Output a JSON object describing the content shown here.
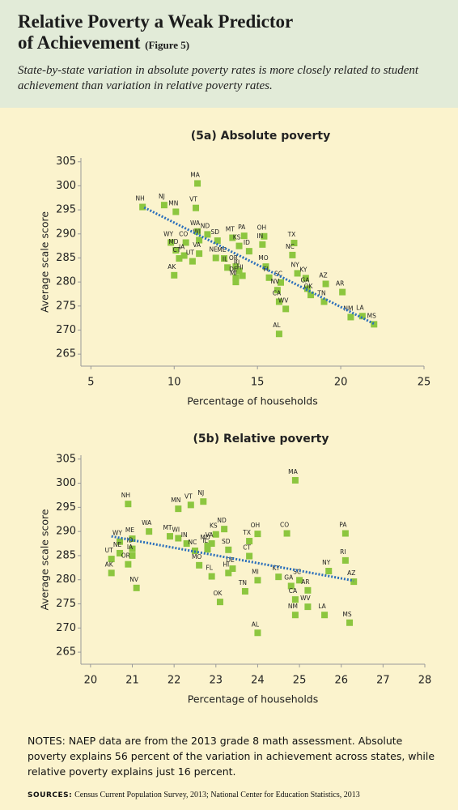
{
  "header": {
    "title": "Relative Poverty a Weak Predictor of Achievement",
    "figure": "(Figure 5)",
    "subtitle": "State-by-state variation in absolute poverty rates is more closely related to student achievement than variation in relative poverty rates."
  },
  "chart_data": [
    {
      "type": "scatter",
      "title": "(5a) Absolute poverty",
      "x_label": "Percentage of households",
      "y_label": "Average scale score",
      "xlim": [
        4.4,
        25
      ],
      "xticks": [
        5,
        10,
        15,
        20,
        25
      ],
      "ylim": [
        262.5,
        305.8
      ],
      "yticks": [
        265,
        270,
        275,
        280,
        285,
        290,
        295,
        300,
        305
      ],
      "color": "#8cc63f",
      "point_labels": [
        "MA",
        "NH",
        "NJ",
        "MN",
        "VT",
        "WA",
        "ND",
        "SD",
        "MT",
        "PA",
        "OH",
        "TX",
        "WY",
        "CO",
        "WI",
        "KS",
        "IN",
        "ID",
        "MD",
        "IA",
        "VA",
        "NE",
        "UT",
        "CT",
        "ME",
        "IL",
        "OR",
        "NC",
        "MO",
        "RI",
        "DE",
        "NY",
        "HI",
        "KY",
        "SC",
        "FL",
        "AZ",
        "MI",
        "NV",
        "GA",
        "AR",
        "OK",
        "TN",
        "CA",
        "WV",
        "NM",
        "LA",
        "MS",
        "AK",
        "AL"
      ],
      "x": [
        11.4,
        8.1,
        9.4,
        10.1,
        11.3,
        11.4,
        12.0,
        12.6,
        13.5,
        14.2,
        15.4,
        17.2,
        9.8,
        10.7,
        11.5,
        13.9,
        15.3,
        14.5,
        10.1,
        10.6,
        11.5,
        12.5,
        11.1,
        10.3,
        13.0,
        13.2,
        13.7,
        17.1,
        15.5,
        13.9,
        13.7,
        17.4,
        14.1,
        17.9,
        16.4,
        15.7,
        19.1,
        13.7,
        16.2,
        18.0,
        20.1,
        18.2,
        19.0,
        16.3,
        16.7,
        20.6,
        21.3,
        22.0,
        10.0,
        16.3
      ],
      "values": [
        300.5,
        295.6,
        296,
        294.6,
        295.4,
        290.5,
        289.9,
        288.6,
        289.2,
        289.6,
        289.5,
        288.1,
        288.2,
        288.2,
        288.7,
        287.5,
        287.8,
        286.4,
        286.6,
        285.5,
        285.9,
        285,
        284.3,
        284.9,
        284.9,
        283,
        283.2,
        285.6,
        283.2,
        282.3,
        280.9,
        281.8,
        281.3,
        280.8,
        279.9,
        280.9,
        279.6,
        280,
        278.3,
        278.6,
        277.9,
        277.3,
        275.9,
        275.9,
        274.4,
        272.7,
        272.9,
        271.2,
        281.4,
        269.2
      ],
      "trendline": {
        "x": [
          8.2,
          22.0
        ],
        "values": [
          295.5,
          271.3
        ],
        "color": "#2a6ebb"
      }
    },
    {
      "type": "scatter",
      "title": "(5b) Relative poverty",
      "x_label": "Percentage of households",
      "y_label": "Average scale score",
      "xlim": [
        19.77,
        28
      ],
      "xticks": [
        20,
        21,
        22,
        23,
        24,
        25,
        26,
        27,
        28
      ],
      "ylim": [
        262.5,
        305.8
      ],
      "yticks": [
        265,
        270,
        275,
        280,
        285,
        290,
        295,
        300,
        305
      ],
      "color": "#8cc63f",
      "point_labels": [
        "MA",
        "NH",
        "MN",
        "VT",
        "NJ",
        "WA",
        "ND",
        "KS",
        "OH",
        "CO",
        "PA",
        "MT",
        "WI",
        "ME",
        "WY",
        "IN",
        "TX",
        "SD",
        "MD",
        "VA",
        "IL",
        "NC",
        "ID",
        "NE",
        "IA",
        "UT",
        "CT",
        "RI",
        "OR",
        "MO",
        "DE",
        "NY",
        "AK",
        "KY",
        "SC",
        "AZ",
        "FL",
        "HI",
        "MI",
        "GA",
        "AR",
        "NV",
        "TN",
        "OK",
        "CA",
        "WV",
        "NM",
        "LA",
        "MS",
        "AL"
      ],
      "x": [
        24.9,
        20.9,
        22.1,
        22.4,
        22.7,
        21.4,
        23.2,
        23.0,
        24.0,
        24.7,
        26.1,
        21.9,
        22.1,
        21.0,
        20.7,
        22.3,
        23.8,
        23.3,
        22.8,
        22.9,
        22.8,
        22.5,
        21.0,
        20.7,
        21.0,
        20.5,
        23.8,
        26.1,
        20.9,
        22.6,
        23.4,
        25.7,
        20.5,
        24.5,
        25.0,
        26.3,
        22.9,
        23.3,
        24.0,
        24.8,
        25.2,
        21.1,
        23.7,
        23.1,
        24.9,
        25.2,
        24.9,
        25.6,
        26.2,
        24.0
      ],
      "values": [
        300.6,
        295.7,
        294.7,
        295.5,
        296.2,
        290,
        290.5,
        289.4,
        289.5,
        289.6,
        289.6,
        289,
        288.6,
        288.5,
        287.9,
        287.5,
        288,
        286.2,
        287,
        287.5,
        286.3,
        286,
        286.4,
        285.5,
        285,
        284.3,
        284.9,
        284,
        283.2,
        283,
        282.3,
        281.8,
        281.4,
        280.6,
        279.9,
        279.6,
        280.7,
        281.4,
        279.9,
        278.7,
        277.8,
        278.3,
        277.6,
        275.4,
        275.9,
        274.4,
        272.7,
        272.7,
        271.1,
        269
      ],
      "trendline": {
        "x": [
          20.5,
          26.3
        ],
        "values": [
          289.0,
          279.8
        ],
        "color": "#2a6ebb"
      }
    }
  ],
  "notes": "NOTES: NAEP data are from the 2013 grade 8 math assessment. Absolute poverty explains 56 percent of the variation in achievement across states, while relative poverty explains just 16 percent.",
  "sources": {
    "label": "SOURCES:",
    "text": "Census Current Population Survey, 2013; National Center for Education Statistics, 2013"
  }
}
